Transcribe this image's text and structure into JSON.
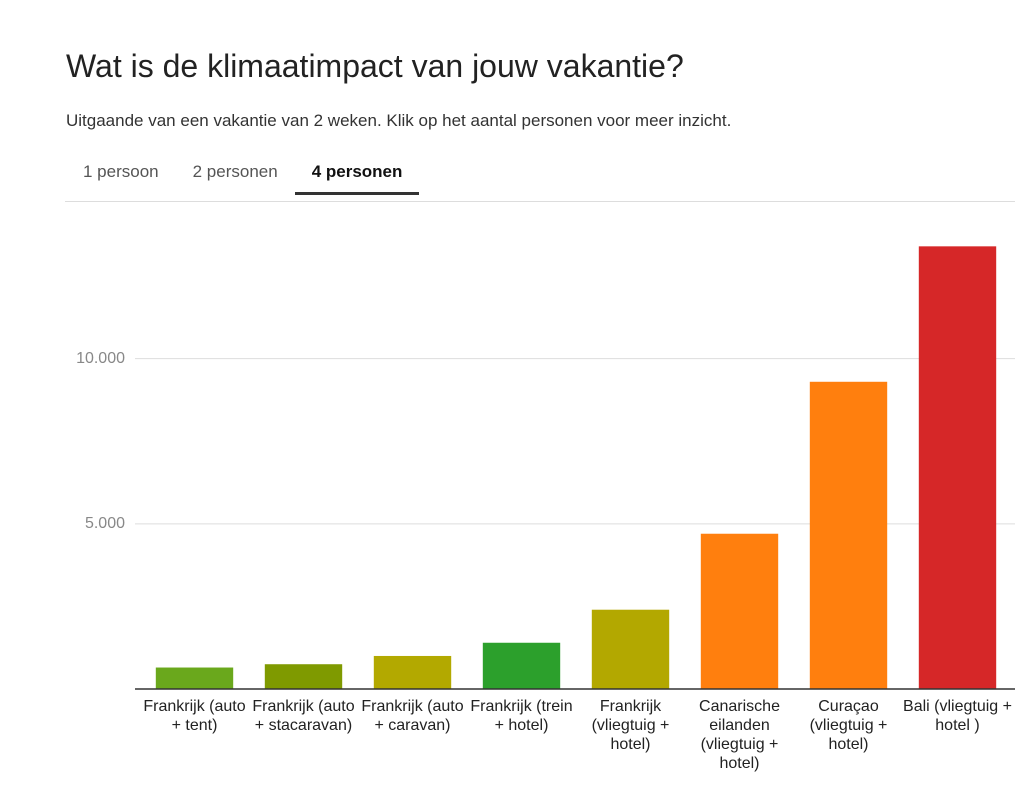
{
  "header": {
    "title": "Wat is de klimaatimpact van jouw vakantie?",
    "subtitle": "Uitgaande van een vakantie van 2 weken. Klik op het aantal personen voor meer inzicht.",
    "tabs": [
      "1 persoon",
      "2 personen",
      "4 personen"
    ],
    "active_tab": 2
  },
  "chart_data": {
    "type": "bar",
    "categories": [
      "Frankrijk (auto + tent)",
      "Frankrijk (auto + stacaravan)",
      "Frankrijk (auto + caravan)",
      "Frankrijk (trein + hotel)",
      "Frankrijk (vliegtuig + hotel)",
      "Canarische eilanden (vliegtuig + hotel)",
      "Curaçao (vliegtuig + hotel)",
      "Bali (vliegtuig + hotel )"
    ],
    "values": [
      650,
      750,
      1000,
      1400,
      2400,
      4700,
      9300,
      13400
    ],
    "colors": [
      "#6aa81c",
      "#7f9a00",
      "#b3a900",
      "#2ca02c",
      "#b3a800",
      "#ff7f0e",
      "#ff7f0e",
      "#d62728"
    ],
    "ylim": [
      0,
      14500
    ],
    "yticks": [
      {
        "value": 5000,
        "label": "5.000"
      },
      {
        "value": 10000,
        "label": "10.000"
      }
    ],
    "grid": true
  }
}
